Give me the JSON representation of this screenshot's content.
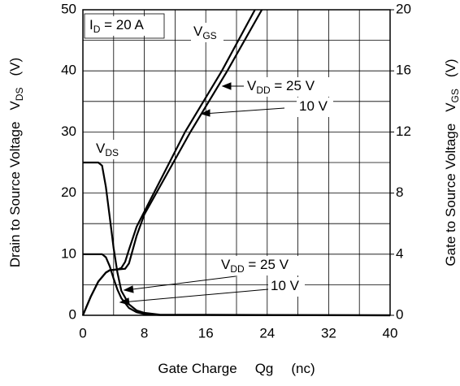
{
  "chart_data": {
    "type": "line",
    "xlabel": [
      "Gate Charge",
      "Qg",
      "(nc)"
    ],
    "ylabel": [
      "Drain to Source Voltage",
      "V",
      "DS",
      "(V)"
    ],
    "y2label": [
      "Gate to Source Voltage",
      "V",
      "GS",
      "(V)"
    ],
    "xlim": [
      0,
      40
    ],
    "xticks": [
      0,
      8,
      16,
      24,
      32,
      40
    ],
    "ylim": [
      0,
      50
    ],
    "yticks": [
      0,
      10,
      20,
      30,
      40,
      50
    ],
    "y2lim": [
      0,
      20
    ],
    "y2ticks": [
      0,
      4,
      8,
      12,
      16,
      20
    ],
    "grid": true,
    "series": [
      {
        "name": "VDS VDD=25V",
        "color": "#000000",
        "axis": "y",
        "x": [
          0,
          2,
          2.5,
          3,
          3.5,
          4,
          4.5,
          5,
          6,
          7,
          8,
          10,
          40
        ],
        "values": [
          25,
          25,
          24.5,
          21,
          16,
          11,
          7,
          4,
          1.8,
          0.8,
          0.4,
          0.1,
          0
        ]
      },
      {
        "name": "VDS VDD=10V",
        "color": "#000000",
        "axis": "y",
        "x": [
          0,
          2.5,
          3,
          3.5,
          4,
          4.5,
          5,
          6,
          7,
          8,
          10,
          40
        ],
        "values": [
          10,
          10,
          9.5,
          8,
          6,
          4.2,
          2.8,
          1.2,
          0.5,
          0.2,
          0.05,
          0
        ]
      },
      {
        "name": "VGS VDD=25V",
        "color": "#000000",
        "axis": "y2",
        "x": [
          0,
          1,
          2,
          3,
          3.5,
          4.5,
          5.5,
          6,
          6.5,
          7,
          8,
          14,
          18.8,
          23.3
        ],
        "values": [
          0,
          1.2,
          2.2,
          2.8,
          2.95,
          3.0,
          3.05,
          3.4,
          4.3,
          5.2,
          6.6,
          12,
          16,
          20
        ]
      },
      {
        "name": "VGS VDD=10V",
        "color": "#000000",
        "axis": "y2",
        "x": [
          0,
          1,
          2,
          3,
          3.5,
          4.5,
          5,
          5.5,
          6,
          7,
          13.3,
          18.1,
          22.4
        ],
        "values": [
          0,
          1.2,
          2.2,
          2.8,
          2.95,
          3.0,
          3.1,
          3.5,
          4.3,
          5.8,
          12,
          16,
          20
        ]
      }
    ],
    "annotations": [
      [
        "I",
        "D",
        " = 20 A"
      ],
      [
        "V",
        "GS",
        ""
      ],
      [
        "V",
        "DS",
        ""
      ],
      [
        "V",
        "DD",
        " = 25 V"
      ],
      [
        "",
        "",
        "10 V"
      ],
      [
        "V",
        "DD",
        " = 25 V"
      ],
      [
        "",
        "",
        "10 V"
      ]
    ]
  }
}
